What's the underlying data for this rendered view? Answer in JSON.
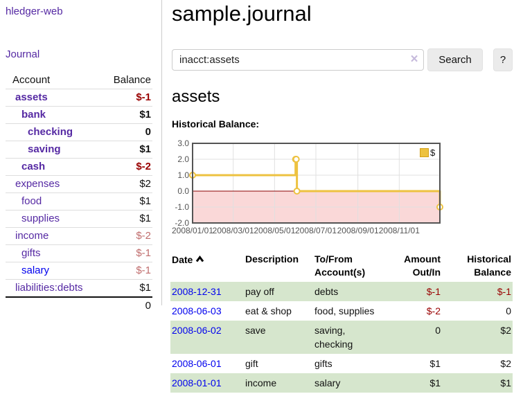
{
  "sidebar": {
    "app_title": "hledger-web",
    "journal_label": "Journal",
    "account_header": "Account",
    "balance_header": "Balance",
    "accounts": [
      {
        "name": "assets",
        "balance": "$-1"
      },
      {
        "name": "bank",
        "balance": "$1"
      },
      {
        "name": "checking",
        "balance": "0"
      },
      {
        "name": "saving",
        "balance": "$1"
      },
      {
        "name": "cash",
        "balance": "$-2"
      },
      {
        "name": "expenses",
        "balance": "$2"
      },
      {
        "name": "food",
        "balance": "$1"
      },
      {
        "name": "supplies",
        "balance": "$1"
      },
      {
        "name": "income",
        "balance": "$-2"
      },
      {
        "name": "gifts",
        "balance": "$-1"
      },
      {
        "name": "salary",
        "balance": "$-1"
      },
      {
        "name": "liabilities:debts",
        "balance": "$1"
      }
    ],
    "total": "0"
  },
  "main": {
    "title": "sample.journal",
    "search": {
      "value": "inacct:assets",
      "clear_icon": "×",
      "search_button_label": "Search",
      "help_button_label": "?"
    },
    "account_heading": "assets",
    "chart_heading": "Historical Balance:"
  },
  "chart_data": {
    "type": "line",
    "title": "Historical Balance",
    "step": "after",
    "series": [
      {
        "name": "$",
        "points": [
          [
            "2008-01-01",
            1
          ],
          [
            "2008-06-01",
            2
          ],
          [
            "2008-06-02",
            2
          ],
          [
            "2008-06-03",
            0
          ],
          [
            "2008-12-31",
            -1
          ]
        ]
      }
    ],
    "x_range": [
      "2008-01-01",
      "2008-12-31"
    ],
    "ylim": [
      -2,
      3
    ],
    "y_ticks": [
      "3.0",
      "2.0",
      "1.0",
      "0.0",
      "-1.0",
      "-2.0"
    ],
    "x_ticks": [
      "2008/01/01",
      "2008/03/01",
      "2008/05/01",
      "2008/07/01",
      "2008/09/01",
      "2008/11/01"
    ],
    "legend": {
      "label": "$",
      "position": "top-right"
    },
    "grid": true,
    "colors": {
      "line": "#edc240",
      "marker_fill": "#ffffff",
      "negative_region": "#fad8d8",
      "zero_line": "#8b0000",
      "grid": "#e0e0e0",
      "border": "#545454"
    }
  },
  "register": {
    "headers": {
      "date": "Date",
      "sort_icon": "chevron-up",
      "description": "Description",
      "accounts": "To/From Account(s)",
      "amount": "Amount Out/In",
      "balance": "Historical Balance"
    },
    "rows": [
      {
        "date": "2008-12-31",
        "description": "pay off",
        "accounts": "debts",
        "amount": "$-1",
        "balance": "$-1"
      },
      {
        "date": "2008-06-03",
        "description": "eat & shop",
        "accounts": "food, supplies",
        "amount": "$-2",
        "balance": "0"
      },
      {
        "date": "2008-06-02",
        "description": "save",
        "accounts": "saving, checking",
        "amount": "0",
        "balance": "$2"
      },
      {
        "date": "2008-06-01",
        "description": "gift",
        "accounts": "gifts",
        "amount": "$1",
        "balance": "$2"
      },
      {
        "date": "2008-01-01",
        "description": "income",
        "accounts": "salary",
        "amount": "$1",
        "balance": "$1"
      }
    ]
  }
}
